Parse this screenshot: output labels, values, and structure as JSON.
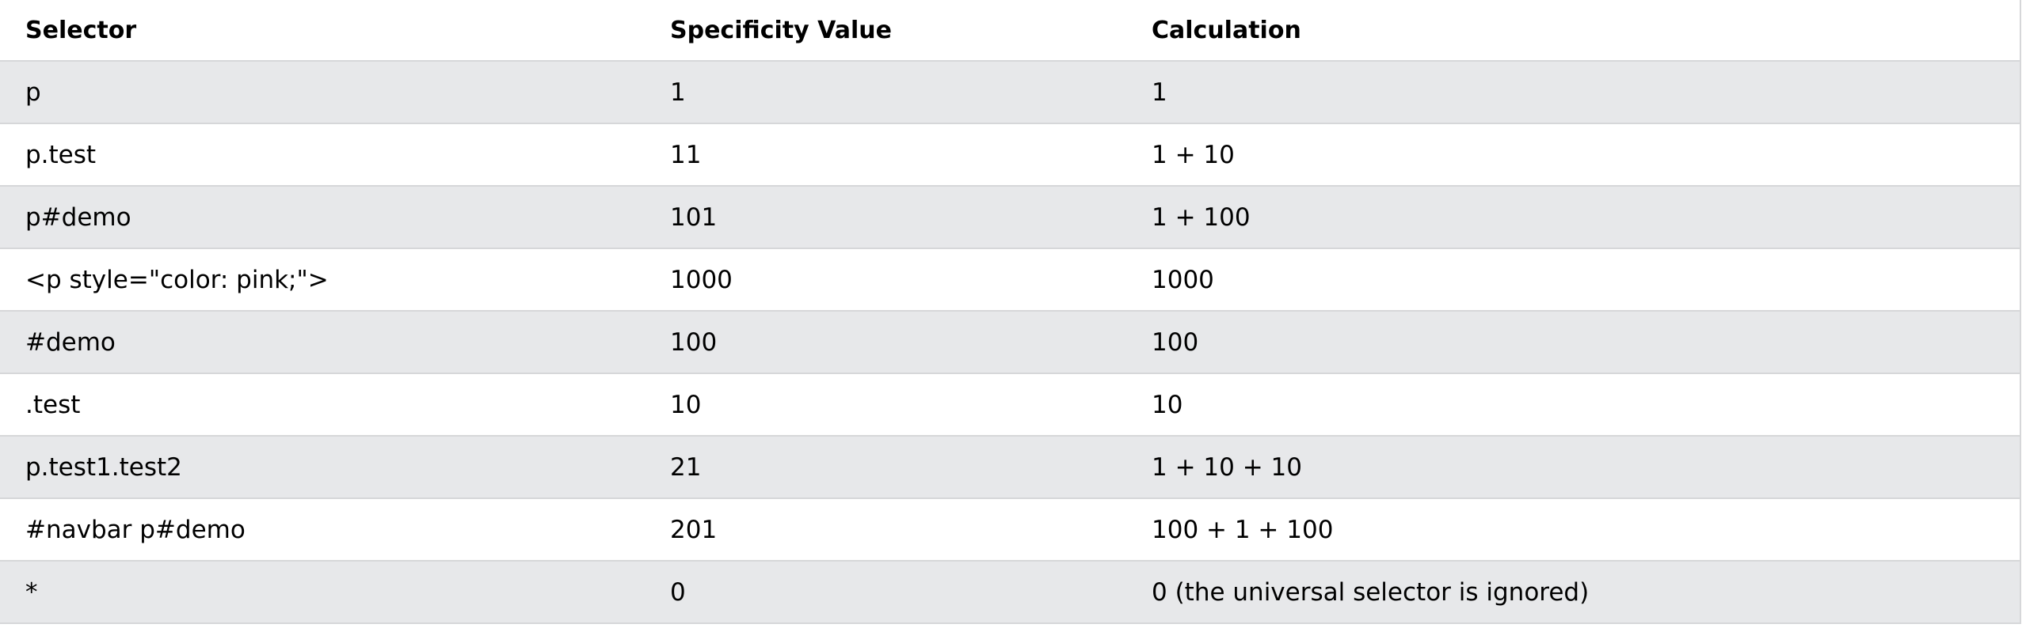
{
  "table": {
    "headers": [
      "Selector",
      "Specificity Value",
      "Calculation"
    ],
    "rows": [
      [
        "p",
        "1",
        "1"
      ],
      [
        "p.test",
        "11",
        "1 + 10"
      ],
      [
        "p#demo",
        "101",
        "1 + 100"
      ],
      [
        "<p style=\"color: pink;\">",
        "1000",
        "1000"
      ],
      [
        "#demo",
        "100",
        "100"
      ],
      [
        ".test",
        "10",
        "10"
      ],
      [
        "p.test1.test2",
        "21",
        "1 + 10 + 10"
      ],
      [
        "#navbar p#demo",
        "201",
        "100 + 1 + 100"
      ],
      [
        "*",
        "0",
        "0 (the universal selector is ignored)"
      ]
    ]
  },
  "colors": {
    "row_striped": "#e7e8ea",
    "row_plain": "#ffffff",
    "border": "#d6d7d9"
  }
}
